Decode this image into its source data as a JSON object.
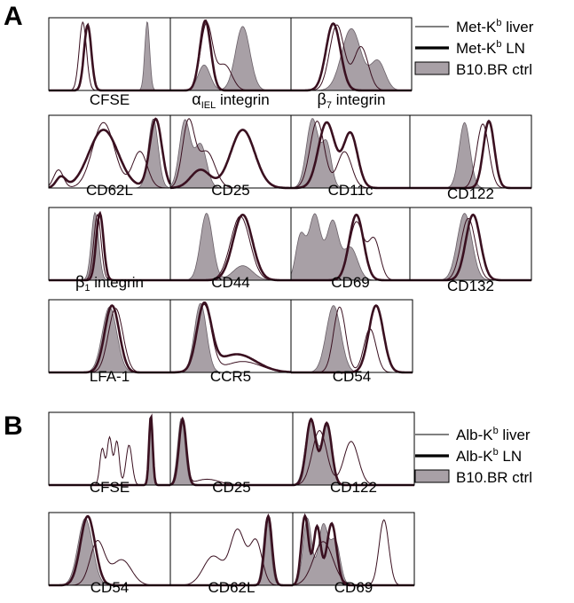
{
  "panels": [
    {
      "letter": "A",
      "legend": [
        {
          "text": "Met-K",
          "sup": "b",
          "rest": " liver",
          "style": "thin"
        },
        {
          "text": "Met-K",
          "sup": "b",
          "rest": " LN",
          "style": "thick"
        },
        {
          "text": "B10.BR ctrl",
          "sup": "",
          "rest": "",
          "style": "filled"
        }
      ]
    },
    {
      "letter": "B",
      "legend": [
        {
          "text": "Alb-K",
          "sup": "b",
          "rest": " liver",
          "style": "thin"
        },
        {
          "text": "Alb-K",
          "sup": "b",
          "rest": " LN",
          "style": "thick"
        },
        {
          "text": "B10.BR ctrl",
          "sup": "",
          "rest": "",
          "style": "filled"
        }
      ]
    }
  ],
  "colors": {
    "filled": "#a8a0a6",
    "thick_line": "#3a1020",
    "thin_line": "#3a1020",
    "frame": "#000000"
  },
  "chart_data": [
    {
      "type": "area",
      "panel": "A",
      "label": "CFSE",
      "label_parts": [
        {
          "t": "CFSE"
        }
      ],
      "series": [
        {
          "name": "Met-Kb liver",
          "peaks": [
            [
              0.28,
              0.94,
              0.03
            ]
          ]
        },
        {
          "name": "Met-Kb LN",
          "peaks": [
            [
              0.32,
              0.9,
              0.03
            ]
          ]
        },
        {
          "name": "B10.BR ctrl",
          "peaks": [
            [
              0.81,
              0.95,
              0.02
            ]
          ]
        }
      ]
    },
    {
      "type": "area",
      "panel": "A",
      "label": "αIEL integrin",
      "label_parts": [
        {
          "t": "α",
          "greek": true
        },
        {
          "t": "IEL",
          "sub": true
        },
        {
          "t": " integrin"
        }
      ],
      "series": [
        {
          "name": "Met-Kb liver",
          "peaks": [
            [
              0.3,
              0.92,
              0.05
            ],
            [
              0.45,
              0.35,
              0.06
            ]
          ]
        },
        {
          "name": "Met-Kb LN",
          "peaks": [
            [
              0.29,
              0.96,
              0.045
            ]
          ]
        },
        {
          "name": "B10.BR ctrl",
          "peaks": [
            [
              0.28,
              0.35,
              0.05
            ],
            [
              0.6,
              0.88,
              0.06
            ]
          ]
        }
      ]
    },
    {
      "type": "area",
      "panel": "A",
      "label": "β7 integrin",
      "label_parts": [
        {
          "t": "β",
          "greek": true
        },
        {
          "t": "7",
          "sub": true
        },
        {
          "t": " integrin"
        }
      ],
      "series": [
        {
          "name": "Met-Kb liver",
          "peaks": [
            [
              0.38,
              0.9,
              0.06
            ],
            [
              0.58,
              0.6,
              0.06
            ]
          ]
        },
        {
          "name": "Met-Kb LN",
          "peaks": [
            [
              0.35,
              0.92,
              0.06
            ]
          ]
        },
        {
          "name": "B10.BR ctrl",
          "peaks": [
            [
              0.5,
              0.85,
              0.08
            ],
            [
              0.72,
              0.4,
              0.06
            ]
          ]
        }
      ]
    },
    {
      "type": "area",
      "panel": "A",
      "label": "CD62L",
      "label_parts": [
        {
          "t": "CD62L"
        }
      ],
      "series": [
        {
          "name": "Met-Kb liver",
          "peaks": [
            [
              0.08,
              0.25,
              0.04
            ],
            [
              0.45,
              0.9,
              0.09
            ],
            [
              0.75,
              0.5,
              0.06
            ]
          ]
        },
        {
          "name": "Met-Kb LN",
          "peaks": [
            [
              0.1,
              0.15,
              0.04
            ],
            [
              0.45,
              0.8,
              0.12
            ],
            [
              0.88,
              0.95,
              0.05
            ]
          ]
        },
        {
          "name": "B10.BR ctrl",
          "peaks": [
            [
              0.86,
              0.95,
              0.04
            ]
          ]
        }
      ]
    },
    {
      "type": "area",
      "panel": "A",
      "label": "CD25",
      "label_parts": [
        {
          "t": "CD25"
        }
      ],
      "series": [
        {
          "name": "Met-Kb liver",
          "peaks": [
            [
              0.15,
              0.9,
              0.05
            ],
            [
              0.3,
              0.5,
              0.07
            ]
          ]
        },
        {
          "name": "Met-Kb LN",
          "peaks": [
            [
              0.25,
              0.25,
              0.08
            ],
            [
              0.6,
              0.8,
              0.1
            ]
          ]
        },
        {
          "name": "B10.BR ctrl",
          "peaks": [
            [
              0.12,
              0.92,
              0.045
            ],
            [
              0.25,
              0.6,
              0.05
            ]
          ]
        }
      ]
    },
    {
      "type": "area",
      "panel": "A",
      "label": "CD11c",
      "label_parts": [
        {
          "t": "CD11c"
        }
      ],
      "series": [
        {
          "name": "Met-Kb liver",
          "peaks": [
            [
              0.22,
              0.92,
              0.06
            ],
            [
              0.45,
              0.5,
              0.06
            ]
          ]
        },
        {
          "name": "Met-Kb LN",
          "peaks": [
            [
              0.3,
              0.9,
              0.07
            ],
            [
              0.5,
              0.75,
              0.06
            ]
          ]
        },
        {
          "name": "B10.BR ctrl",
          "peaks": [
            [
              0.18,
              0.95,
              0.05
            ],
            [
              0.3,
              0.6,
              0.04
            ]
          ]
        }
      ]
    },
    {
      "type": "area",
      "panel": "A",
      "label": "CD122",
      "label_parts": [
        {
          "t": "CD122"
        }
      ],
      "series": [
        {
          "name": "Met-Kb liver",
          "peaks": [
            [
              0.6,
              0.88,
              0.05
            ]
          ]
        },
        {
          "name": "Met-Kb LN",
          "peaks": [
            [
              0.65,
              0.92,
              0.045
            ]
          ]
        },
        {
          "name": "B10.BR ctrl",
          "peaks": [
            [
              0.45,
              0.9,
              0.045
            ]
          ]
        }
      ]
    },
    {
      "type": "area",
      "panel": "A",
      "label": "β1 integrin",
      "label_parts": [
        {
          "t": "β",
          "greek": true
        },
        {
          "t": "1",
          "sub": true
        },
        {
          "t": " integrin"
        }
      ],
      "series": [
        {
          "name": "Met-Kb liver",
          "peaks": [
            [
              0.4,
              0.9,
              0.03
            ]
          ]
        },
        {
          "name": "Met-Kb LN",
          "peaks": [
            [
              0.42,
              0.92,
              0.03
            ]
          ]
        },
        {
          "name": "B10.BR ctrl",
          "peaks": [
            [
              0.38,
              0.93,
              0.03
            ]
          ]
        }
      ]
    },
    {
      "type": "area",
      "panel": "A",
      "label": "CD44",
      "label_parts": [
        {
          "t": "CD44"
        }
      ],
      "series": [
        {
          "name": "Met-Kb liver",
          "peaks": [
            [
              0.58,
              0.88,
              0.08
            ]
          ]
        },
        {
          "name": "Met-Kb LN",
          "peaks": [
            [
              0.6,
              0.9,
              0.08
            ]
          ]
        },
        {
          "name": "B10.BR ctrl",
          "peaks": [
            [
              0.3,
              0.92,
              0.05
            ],
            [
              0.6,
              0.2,
              0.08
            ]
          ]
        }
      ]
    },
    {
      "type": "area",
      "panel": "A",
      "label": "CD69",
      "label_parts": [
        {
          "t": "CD69"
        }
      ],
      "series": [
        {
          "name": "Met-Kb liver",
          "peaks": [
            [
              0.55,
              0.8,
              0.06
            ],
            [
              0.7,
              0.55,
              0.05
            ]
          ]
        },
        {
          "name": "Met-Kb LN",
          "peaks": [
            [
              0.55,
              0.9,
              0.06
            ]
          ]
        },
        {
          "name": "B10.BR ctrl",
          "peaks": [
            [
              0.08,
              0.6,
              0.04
            ],
            [
              0.2,
              0.9,
              0.05
            ],
            [
              0.35,
              0.8,
              0.05
            ],
            [
              0.5,
              0.45,
              0.06
            ]
          ]
        }
      ]
    },
    {
      "type": "area",
      "panel": "A",
      "label": "CD132",
      "label_parts": [
        {
          "t": "CD132"
        }
      ],
      "series": [
        {
          "name": "Met-Kb liver",
          "peaks": [
            [
              0.48,
              0.85,
              0.06
            ]
          ]
        },
        {
          "name": "Met-Kb LN",
          "peaks": [
            [
              0.52,
              0.9,
              0.06
            ]
          ]
        },
        {
          "name": "B10.BR ctrl",
          "peaks": [
            [
              0.45,
              0.92,
              0.06
            ]
          ]
        }
      ]
    },
    {
      "type": "area",
      "panel": "A",
      "label": "LFA-1",
      "label_parts": [
        {
          "t": "LFA-1"
        }
      ],
      "series": [
        {
          "name": "Met-Kb liver",
          "peaks": [
            [
              0.55,
              0.88,
              0.06
            ]
          ]
        },
        {
          "name": "Met-Kb LN",
          "peaks": [
            [
              0.52,
              0.92,
              0.06
            ]
          ]
        },
        {
          "name": "B10.BR ctrl",
          "peaks": [
            [
              0.5,
              0.9,
              0.06
            ]
          ]
        }
      ]
    },
    {
      "type": "area",
      "panel": "A",
      "label": "CCR5",
      "label_parts": [
        {
          "t": "CCR5"
        }
      ],
      "series": [
        {
          "name": "Met-Kb liver",
          "peaks": [
            [
              0.28,
              0.92,
              0.06
            ],
            [
              0.6,
              0.15,
              0.15
            ]
          ]
        },
        {
          "name": "Met-Kb LN",
          "peaks": [
            [
              0.28,
              0.9,
              0.06
            ],
            [
              0.55,
              0.25,
              0.16
            ]
          ]
        },
        {
          "name": "B10.BR ctrl",
          "peaks": [
            [
              0.25,
              0.95,
              0.05
            ]
          ]
        }
      ]
    },
    {
      "type": "area",
      "panel": "A",
      "label": "CD54",
      "label_parts": [
        {
          "t": "CD54"
        }
      ],
      "series": [
        {
          "name": "Met-Kb liver",
          "peaks": [
            [
              0.4,
              0.9,
              0.05
            ],
            [
              0.65,
              0.6,
              0.05
            ]
          ]
        },
        {
          "name": "Met-Kb LN",
          "peaks": [
            [
              0.7,
              0.92,
              0.06
            ]
          ]
        },
        {
          "name": "B10.BR ctrl",
          "peaks": [
            [
              0.35,
              0.92,
              0.06
            ]
          ]
        }
      ]
    },
    {
      "type": "area",
      "panel": "B",
      "label": "CFSE",
      "label_parts": [
        {
          "t": "CFSE"
        }
      ],
      "series": [
        {
          "name": "Alb-Kb liver",
          "peaks": [
            [
              0.44,
              0.5,
              0.02
            ],
            [
              0.5,
              0.65,
              0.02
            ],
            [
              0.56,
              0.6,
              0.02
            ],
            [
              0.66,
              0.55,
              0.025
            ]
          ]
        },
        {
          "name": "Alb-Kb LN",
          "peaks": [
            [
              0.84,
              0.95,
              0.015
            ]
          ]
        },
        {
          "name": "B10.BR ctrl",
          "peaks": [
            [
              0.84,
              0.94,
              0.015
            ]
          ]
        }
      ]
    },
    {
      "type": "area",
      "panel": "B",
      "label": "CD25",
      "label_parts": [
        {
          "t": "CD25"
        }
      ],
      "series": [
        {
          "name": "Alb-Kb liver",
          "peaks": [
            [
              0.1,
              0.92,
              0.03
            ],
            [
              0.3,
              0.08,
              0.1
            ]
          ]
        },
        {
          "name": "Alb-Kb LN",
          "peaks": [
            [
              0.1,
              0.9,
              0.03
            ]
          ]
        },
        {
          "name": "B10.BR ctrl",
          "peaks": [
            [
              0.09,
              0.92,
              0.03
            ]
          ]
        }
      ]
    },
    {
      "type": "area",
      "panel": "B",
      "label": "CD122",
      "label_parts": [
        {
          "t": "CD122"
        }
      ],
      "series": [
        {
          "name": "Alb-Kb liver",
          "peaks": [
            [
              0.22,
              0.75,
              0.06
            ],
            [
              0.48,
              0.6,
              0.06
            ]
          ]
        },
        {
          "name": "Alb-Kb LN",
          "peaks": [
            [
              0.15,
              0.9,
              0.04
            ],
            [
              0.28,
              0.85,
              0.04
            ]
          ]
        },
        {
          "name": "B10.BR ctrl",
          "peaks": [
            [
              0.15,
              0.92,
              0.045
            ],
            [
              0.28,
              0.8,
              0.04
            ]
          ]
        }
      ]
    },
    {
      "type": "area",
      "panel": "B",
      "label": "CD54",
      "label_parts": [
        {
          "t": "CD54"
        }
      ],
      "series": [
        {
          "name": "Alb-Kb liver",
          "peaks": [
            [
              0.4,
              0.6,
              0.06
            ],
            [
              0.6,
              0.35,
              0.08
            ]
          ]
        },
        {
          "name": "Alb-Kb LN",
          "peaks": [
            [
              0.32,
              0.95,
              0.06
            ]
          ]
        },
        {
          "name": "B10.BR ctrl",
          "peaks": [
            [
              0.3,
              0.92,
              0.06
            ]
          ]
        }
      ]
    },
    {
      "type": "area",
      "panel": "B",
      "label": "CD62L",
      "label_parts": [
        {
          "t": "CD62L"
        }
      ],
      "series": [
        {
          "name": "Alb-Kb liver",
          "peaks": [
            [
              0.35,
              0.4,
              0.08
            ],
            [
              0.55,
              0.75,
              0.06
            ],
            [
              0.7,
              0.6,
              0.05
            ]
          ]
        },
        {
          "name": "Alb-Kb LN",
          "peaks": [
            [
              0.8,
              0.95,
              0.03
            ]
          ]
        },
        {
          "name": "B10.BR ctrl",
          "peaks": [
            [
              0.79,
              0.93,
              0.03
            ]
          ]
        }
      ]
    },
    {
      "type": "area",
      "panel": "B",
      "label": "CD69",
      "label_parts": [
        {
          "t": "CD69"
        }
      ],
      "series": [
        {
          "name": "Alb-Kb liver",
          "peaks": [
            [
              0.25,
              0.6,
              0.08
            ],
            [
              0.75,
              0.9,
              0.04
            ]
          ]
        },
        {
          "name": "Alb-Kb LN",
          "peaks": [
            [
              0.1,
              0.95,
              0.03
            ],
            [
              0.2,
              0.8,
              0.03
            ],
            [
              0.32,
              0.85,
              0.04
            ]
          ]
        },
        {
          "name": "B10.BR ctrl",
          "peaks": [
            [
              0.12,
              0.92,
              0.035
            ],
            [
              0.25,
              0.82,
              0.04
            ],
            [
              0.35,
              0.6,
              0.04
            ]
          ]
        }
      ]
    }
  ]
}
